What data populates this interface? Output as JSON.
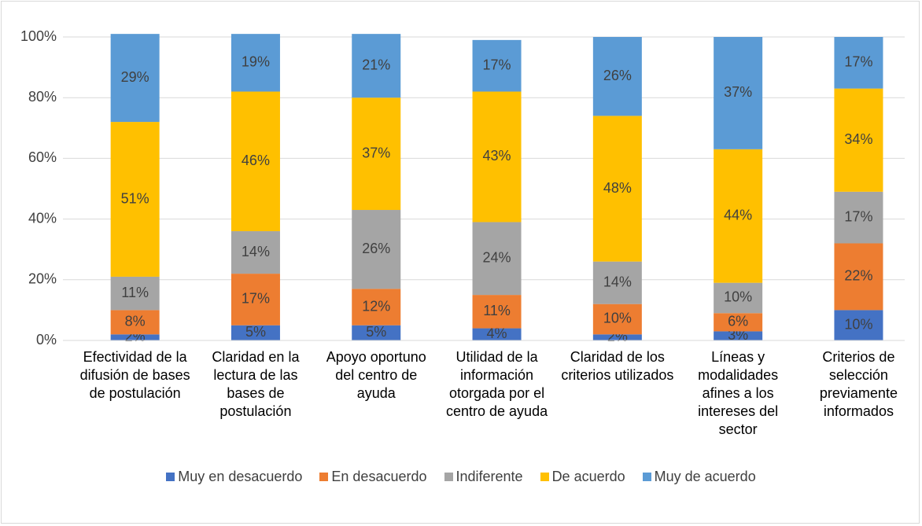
{
  "chart_data": {
    "type": "stacked_bar",
    "categories": [
      "Efectividad de la difusión de bases de postulación",
      "Claridad en la lectura de las bases de postulación",
      "Apoyo oportuno del centro de ayuda",
      "Utilidad de la información otorgada por el centro de ayuda",
      "Claridad de los criterios utilizados",
      "Líneas y modalidades afines a los intereses del sector",
      "Criterios de selección previamente informados"
    ],
    "series": [
      {
        "name": "Muy en desacuerdo",
        "color": "#4472c4",
        "values": [
          2,
          5,
          5,
          4,
          2,
          3,
          10
        ],
        "value_labels": [
          "2%",
          "5%",
          "5%",
          "4%",
          "2%",
          "3%",
          "10%"
        ]
      },
      {
        "name": "En desacuerdo",
        "color": "#ed7d31",
        "values": [
          8,
          17,
          12,
          11,
          10,
          6,
          22
        ],
        "value_labels": [
          "8%",
          "17%",
          "12%",
          "11%",
          "10%",
          "6%",
          "22%"
        ]
      },
      {
        "name": "Indiferente",
        "color": "#a5a5a5",
        "values": [
          11,
          14,
          26,
          24,
          14,
          10,
          17
        ],
        "value_labels": [
          "11%",
          "14%",
          "26%",
          "24%",
          "14%",
          "10%",
          "17%"
        ]
      },
      {
        "name": "De acuerdo",
        "color": "#ffc000",
        "values": [
          51,
          46,
          37,
          43,
          48,
          44,
          34
        ],
        "value_labels": [
          "51%",
          "46%",
          "37%",
          "43%",
          "48%",
          "44%",
          "34%"
        ]
      },
      {
        "name": "Muy de acuerdo",
        "color": "#5b9bd5",
        "values": [
          29,
          19,
          21,
          17,
          26,
          37,
          17
        ],
        "value_labels": [
          "29%",
          "19%",
          "21%",
          "17%",
          "26%",
          "37%",
          "17%"
        ]
      }
    ],
    "ylim": [
      0,
      100
    ],
    "yticks": [
      {
        "value": 0,
        "label": "0%"
      },
      {
        "value": 20,
        "label": "20%"
      },
      {
        "value": 40,
        "label": "40%"
      },
      {
        "value": 60,
        "label": "60%"
      },
      {
        "value": 80,
        "label": "80%"
      },
      {
        "value": 100,
        "label": "100%"
      }
    ],
    "grid": true,
    "legend": "bottom"
  }
}
